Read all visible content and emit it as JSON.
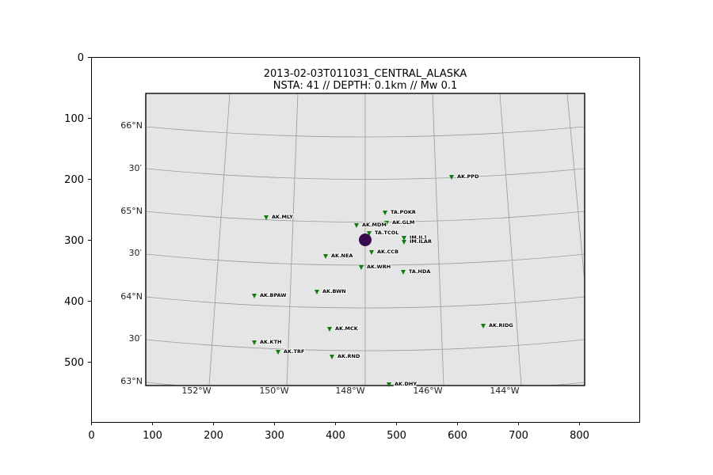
{
  "title_line1": "2013-02-03T011031_CENTRAL_ALASKA",
  "title_line2": "NSTA: 41 // DEPTH: 0.1km // Mw 0.1",
  "axes": {
    "x_ticks": [
      "0",
      "100",
      "200",
      "300",
      "400",
      "500",
      "600",
      "700",
      "800"
    ],
    "y_ticks": [
      "0",
      "100",
      "200",
      "300",
      "400",
      "500"
    ]
  },
  "map": {
    "background": "#e5e5e5",
    "lon_labels": [
      "152°W",
      "150°W",
      "148°W",
      "146°W",
      "144°W"
    ],
    "lat_labels": [
      "66°N",
      "30′",
      "65°N",
      "30′",
      "64°N",
      "30′",
      "63°N"
    ],
    "station_color": "#127a12",
    "event_color": "#3a0a4f",
    "stations": [
      {
        "name": "AK.PPD"
      },
      {
        "name": "TA.POKR"
      },
      {
        "name": "AK.GLM"
      },
      {
        "name": "AK.MLY"
      },
      {
        "name": "AK.MDM"
      },
      {
        "name": "TA.TCOL"
      },
      {
        "name": "IM.IL1"
      },
      {
        "name": "IM.ILAR"
      },
      {
        "name": "AK.CCB"
      },
      {
        "name": "AK.NEA"
      },
      {
        "name": "AK.WRH"
      },
      {
        "name": "TA.HDA"
      },
      {
        "name": "AK.BWN"
      },
      {
        "name": "AK.BPAW"
      },
      {
        "name": "AK.MCK"
      },
      {
        "name": "AK.RIDG"
      },
      {
        "name": "AK.KTH"
      },
      {
        "name": "AK.TRF"
      },
      {
        "name": "AK.RND"
      },
      {
        "name": "AK.DHY"
      }
    ]
  }
}
